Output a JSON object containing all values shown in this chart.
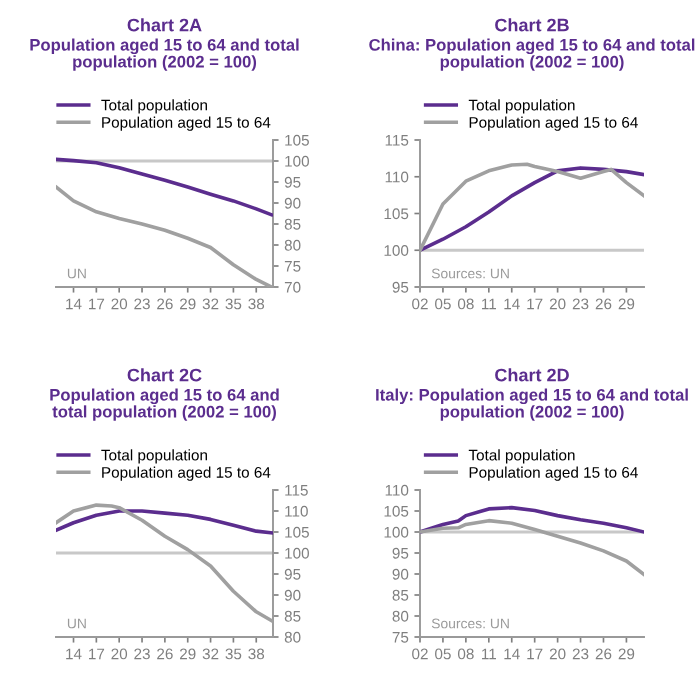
{
  "chart_data": [
    {
      "type": "line",
      "title": "Chart 2A",
      "subtitle": "Population aged 15 to 64 and total\npopulation (2002 = 100)",
      "legend": "top",
      "grid": false,
      "annotations": [
        "UN"
      ],
      "xlim": [
        2011.7,
        2040.2
      ],
      "xticks": [
        {
          "value": 2014,
          "label": "14"
        },
        {
          "value": 2017,
          "label": "17"
        },
        {
          "value": 2020,
          "label": "20"
        },
        {
          "value": 2023,
          "label": "23"
        },
        {
          "value": 2026,
          "label": "26"
        },
        {
          "value": 2029,
          "label": "29"
        },
        {
          "value": 2032,
          "label": "32"
        },
        {
          "value": 2035,
          "label": "35"
        },
        {
          "value": 2038,
          "label": "38"
        }
      ],
      "ylim": [
        70,
        105
      ],
      "yticks": [
        70,
        75,
        80,
        85,
        90,
        95,
        100,
        105
      ],
      "ref_lines": [
        {
          "axis": "y",
          "value": 100,
          "color": "#c8c8c8"
        }
      ],
      "series": [
        {
          "name": "Total population",
          "color": "#5b2d8e",
          "x": [
            2011.7,
            2014,
            2017,
            2020,
            2023,
            2026,
            2029,
            2032,
            2035,
            2038,
            2040
          ],
          "values": [
            100.4,
            100.1,
            99.6,
            98.4,
            96.9,
            95.4,
            93.8,
            92.1,
            90.5,
            88.6,
            87.2
          ]
        },
        {
          "name": "Population aged 15 to 64",
          "color": "#a0a0a0",
          "x": [
            2011.7,
            2014,
            2017,
            2020,
            2023,
            2026,
            2029,
            2032,
            2035,
            2038,
            2040
          ],
          "values": [
            93.8,
            90.5,
            87.9,
            86.3,
            85,
            83.5,
            81.6,
            79.4,
            75.3,
            71.8,
            70
          ]
        }
      ]
    },
    {
      "type": "line",
      "title": "Chart 2B",
      "subtitle": "China: Population aged 15 to 64 and total\npopulation (2002 = 100)",
      "legend": "top",
      "grid": false,
      "annotations": [
        "Sources: UN"
      ],
      "xlim": [
        2002,
        2031.3
      ],
      "xticks": [
        {
          "value": 2002,
          "label": "02"
        },
        {
          "value": 2005,
          "label": "05"
        },
        {
          "value": 2008,
          "label": "08"
        },
        {
          "value": 2011,
          "label": "11"
        },
        {
          "value": 2014,
          "label": "14"
        },
        {
          "value": 2017,
          "label": "17"
        },
        {
          "value": 2020,
          "label": "20"
        },
        {
          "value": 2023,
          "label": "23"
        },
        {
          "value": 2026,
          "label": "26"
        },
        {
          "value": 2029,
          "label": "29"
        }
      ],
      "ylim": [
        95,
        115
      ],
      "yticks": [
        95,
        100,
        105,
        110,
        115
      ],
      "ref_lines": [
        {
          "axis": "y",
          "value": 100,
          "color": "#c8c8c8"
        }
      ],
      "series": [
        {
          "name": "Total population",
          "color": "#5b2d8e",
          "x": [
            2002,
            2005,
            2008,
            2011,
            2014,
            2017,
            2020,
            2023,
            2026,
            2029,
            2031.3
          ],
          "values": [
            100,
            101.5,
            103.2,
            105.2,
            107.4,
            109.2,
            110.8,
            111.2,
            111,
            110.7,
            110.3
          ]
        },
        {
          "name": "Population aged 15 to 64",
          "color": "#a0a0a0",
          "x": [
            2002,
            2005,
            2008,
            2011,
            2014,
            2016,
            2017,
            2020,
            2023,
            2026,
            2027,
            2029,
            2031.3
          ],
          "values": [
            100,
            106.3,
            109.4,
            110.8,
            111.6,
            111.7,
            111.4,
            110.7,
            109.8,
            110.7,
            111,
            109.2,
            107.4
          ]
        }
      ]
    },
    {
      "type": "line",
      "title": "Chart 2C",
      "subtitle": "Population aged 15 to 64 and\ntotal population (2002 = 100)",
      "legend": "top",
      "grid": false,
      "annotations": [
        "UN"
      ],
      "xlim": [
        2011.7,
        2040.2
      ],
      "xticks": [
        {
          "value": 2014,
          "label": "14"
        },
        {
          "value": 2017,
          "label": "17"
        },
        {
          "value": 2020,
          "label": "20"
        },
        {
          "value": 2023,
          "label": "23"
        },
        {
          "value": 2026,
          "label": "26"
        },
        {
          "value": 2029,
          "label": "29"
        },
        {
          "value": 2032,
          "label": "32"
        },
        {
          "value": 2035,
          "label": "35"
        },
        {
          "value": 2038,
          "label": "38"
        }
      ],
      "ylim": [
        80,
        115
      ],
      "yticks": [
        80,
        85,
        90,
        95,
        100,
        105,
        110,
        115
      ],
      "ref_lines": [
        {
          "axis": "y",
          "value": 100,
          "color": "#c8c8c8"
        }
      ],
      "series": [
        {
          "name": "Total population",
          "color": "#5b2d8e",
          "x": [
            2011.7,
            2014,
            2017,
            2020,
            2023,
            2026,
            2029,
            2032,
            2035,
            2038,
            2040
          ],
          "values": [
            105.4,
            107.2,
            109,
            110,
            110,
            109.5,
            109,
            108,
            106.6,
            105.2,
            104.8
          ]
        },
        {
          "name": "Population aged 15 to 64",
          "color": "#a0a0a0",
          "x": [
            2011.7,
            2014,
            2017,
            2019,
            2020,
            2023,
            2026,
            2029,
            2032,
            2035,
            2038,
            2040
          ],
          "values": [
            107.2,
            110,
            111.4,
            111.2,
            110.8,
            107.8,
            104,
            100.8,
            96.9,
            90.9,
            86,
            83.9
          ]
        }
      ]
    },
    {
      "type": "line",
      "title": "Chart 2D",
      "subtitle": "Italy: Population aged 15 to 64 and total\npopulation (2002 = 100)",
      "legend": "top",
      "grid": false,
      "annotations": [
        "Sources: UN"
      ],
      "xlim": [
        2002,
        2031.3
      ],
      "xticks": [
        {
          "value": 2002,
          "label": "02"
        },
        {
          "value": 2005,
          "label": "05"
        },
        {
          "value": 2008,
          "label": "08"
        },
        {
          "value": 2011,
          "label": "11"
        },
        {
          "value": 2014,
          "label": "14"
        },
        {
          "value": 2017,
          "label": "17"
        },
        {
          "value": 2020,
          "label": "20"
        },
        {
          "value": 2023,
          "label": "23"
        },
        {
          "value": 2026,
          "label": "26"
        },
        {
          "value": 2029,
          "label": "29"
        }
      ],
      "ylim": [
        75,
        110
      ],
      "yticks": [
        75,
        80,
        85,
        90,
        95,
        100,
        105,
        110
      ],
      "ref_lines": [
        {
          "axis": "y",
          "value": 100,
          "color": "#c8c8c8"
        }
      ],
      "series": [
        {
          "name": "Total population",
          "color": "#5b2d8e",
          "x": [
            2002,
            2005,
            2007,
            2008,
            2011,
            2014,
            2017,
            2020,
            2023,
            2026,
            2029,
            2031.3
          ],
          "values": [
            100,
            101.8,
            102.6,
            103.9,
            105.5,
            105.8,
            105.1,
            103.9,
            102.9,
            102.1,
            101,
            100
          ]
        },
        {
          "name": "Population aged 15 to 64",
          "color": "#a0a0a0",
          "x": [
            2002,
            2005,
            2007,
            2008,
            2011,
            2014,
            2017,
            2020,
            2023,
            2026,
            2029,
            2031.3
          ],
          "values": [
            100,
            100.9,
            101,
            101.8,
            102.7,
            102.1,
            100.6,
            99,
            97.4,
            95.5,
            93.1,
            89.9
          ]
        }
      ]
    }
  ]
}
